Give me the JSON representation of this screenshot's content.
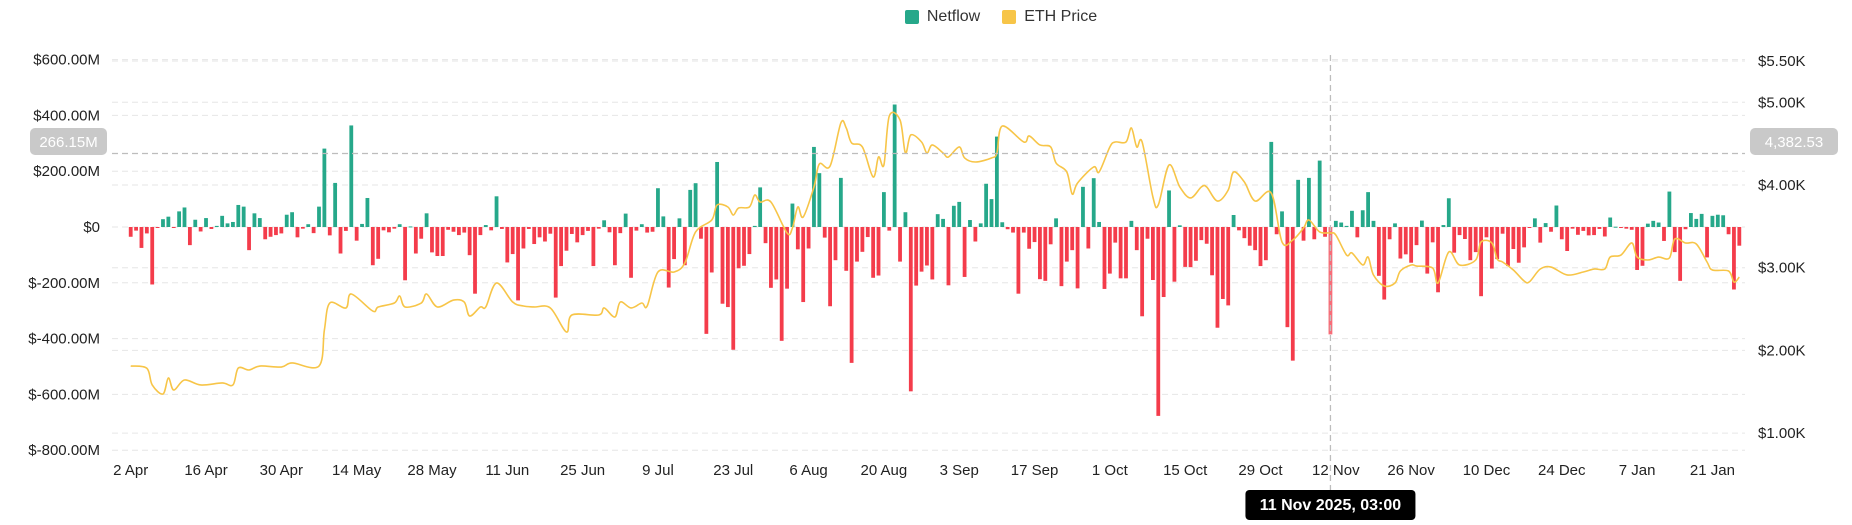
{
  "legend": {
    "netflow_label": "Netflow",
    "price_label": "ETH Price"
  },
  "colors": {
    "inflow": "#26a88a",
    "outflow": "#f43c4b",
    "price": "#f7c548",
    "grid": "#e6e6e6",
    "crosshair": "#bdbdbd",
    "crosshair_label_bg": "#c9c9c9",
    "tooltip_bg": "#000000"
  },
  "crosshair": {
    "left_value_label": "266.15M",
    "right_value_label": "4,382.53",
    "date_label": "11 Nov 2025, 03:00",
    "date_index": 223
  },
  "chart_data": {
    "type": "bar+line",
    "title": "",
    "x_start": "2025-04-02",
    "x_step_days": 1,
    "x_tick_labels": [
      "2 Apr",
      "16 Apr",
      "30 Apr",
      "14 May",
      "28 May",
      "11 Jun",
      "25 Jun",
      "9 Jul",
      "23 Jul",
      "6 Aug",
      "20 Aug",
      "3 Sep",
      "17 Sep",
      "1 Oct",
      "15 Oct",
      "29 Oct",
      "12 Nov",
      "26 Nov",
      "10 Dec",
      "24 Dec",
      "7 Jan",
      "21 Jan"
    ],
    "x_tick_every_days": 14,
    "left_axis": {
      "unit": "USD millions",
      "ylim": [
        -800,
        600
      ],
      "ticks": [
        600,
        400,
        200,
        0,
        -200,
        -400,
        -600,
        -800
      ],
      "tick_labels": [
        "$600.00M",
        "$400.00M",
        "$200.00M",
        "$0",
        "$-200.00M",
        "$-400.00M",
        "$-600.00M",
        "$-800.00M"
      ]
    },
    "right_axis": {
      "unit": "USD",
      "ticks": [
        5500,
        5000,
        4000,
        3000,
        2000,
        1000
      ],
      "tick_labels": [
        "$5.50K",
        "$5.00K",
        "$4.00K",
        "$3.00K",
        "$2.00K",
        "$1.00K"
      ]
    },
    "grid": true,
    "legend_position": "top-center",
    "series": [
      {
        "name": "Netflow",
        "type": "bar",
        "axis": "left",
        "values": [
          -35,
          -13,
          -75,
          -23,
          -206,
          -2,
          28,
          37,
          -1,
          56,
          70,
          -65,
          26,
          -16,
          32,
          -7,
          4,
          40,
          13,
          18,
          79,
          73,
          -83,
          49,
          32,
          -44,
          -35,
          -29,
          -23,
          44,
          53,
          -37,
          -6,
          10,
          -22,
          73,
          281,
          -30,
          158,
          -95,
          -14,
          364,
          -49,
          11,
          104,
          -137,
          -114,
          -12,
          -19,
          -6,
          10,
          -191,
          2,
          -95,
          -42,
          49,
          -91,
          -104,
          -104,
          -10,
          -17,
          -29,
          -20,
          -101,
          -239,
          -29,
          7,
          -12,
          110,
          -7,
          -127,
          -97,
          -263,
          -77,
          -7,
          -61,
          -37,
          -52,
          -24,
          -253,
          -140,
          -85,
          -25,
          -55,
          -29,
          -14,
          -140,
          -6,
          24,
          -19,
          -137,
          -22,
          48,
          -182,
          -13,
          10,
          -20,
          -17,
          139,
          38,
          -217,
          -115,
          31,
          -137,
          133,
          157,
          -42,
          -383,
          -163,
          233,
          -275,
          -287,
          -440,
          -148,
          -139,
          -97,
          4,
          142,
          -58,
          -218,
          -188,
          -408,
          -221,
          84,
          -80,
          -269,
          -77,
          287,
          193,
          -38,
          -284,
          -119,
          176,
          -157,
          -487,
          -124,
          -89,
          -36,
          -182,
          -174,
          125,
          -13,
          439,
          -124,
          53,
          -589,
          -210,
          -160,
          -138,
          -188,
          46,
          29,
          -209,
          76,
          90,
          -179,
          25,
          -52,
          13,
          155,
          100,
          324,
          17,
          -8,
          -20,
          -239,
          -20,
          -78,
          -54,
          -187,
          -193,
          -62,
          31,
          -212,
          -124,
          -83,
          -220,
          144,
          -77,
          175,
          18,
          -222,
          -167,
          -56,
          -184,
          -184,
          22,
          -83,
          -320,
          -42,
          -190,
          -677,
          -251,
          131,
          -196,
          6,
          -143,
          -144,
          -121,
          -47,
          -60,
          -173,
          -361,
          -258,
          -281,
          43,
          -12,
          -40,
          -67,
          -83,
          -140,
          -119,
          305,
          -26,
          56,
          -359,
          -479,
          169,
          -49,
          176,
          -44,
          238,
          -35,
          -385,
          22,
          16,
          4,
          58,
          -37,
          60,
          125,
          22,
          -175,
          -260,
          -44,
          13,
          -113,
          -98,
          -128,
          -65,
          23,
          -167,
          -55,
          -234,
          7,
          103,
          -92,
          -29,
          -43,
          -119,
          -90,
          -248,
          -37,
          -149,
          -115,
          -24,
          -140,
          -79,
          -128,
          -73,
          -1,
          31,
          -56,
          14,
          -17,
          77,
          -44,
          -86,
          -6,
          -28,
          -14,
          -30,
          -29,
          -7,
          -34,
          34,
          1,
          -2,
          -6,
          -10,
          -154,
          -139,
          12,
          22,
          16,
          -50,
          127,
          -90,
          -193,
          -8,
          50,
          29,
          47,
          -109,
          40,
          44,
          42,
          -26,
          -224,
          -67
        ]
      },
      {
        "name": "ETH Price",
        "type": "line",
        "axis": "right",
        "points": [
          [
            0,
            1811
          ],
          [
            3,
            1784
          ],
          [
            4,
            1582
          ],
          [
            6,
            1473
          ],
          [
            7,
            1666
          ],
          [
            8,
            1521
          ],
          [
            10,
            1642
          ],
          [
            13,
            1582
          ],
          [
            17,
            1606
          ],
          [
            19,
            1582
          ],
          [
            20,
            1787
          ],
          [
            22,
            1763
          ],
          [
            24,
            1811
          ],
          [
            28,
            1799
          ],
          [
            30,
            1848
          ],
          [
            35,
            1811
          ],
          [
            36,
            2247
          ],
          [
            37,
            2573
          ],
          [
            40,
            2513
          ],
          [
            41,
            2682
          ],
          [
            45,
            2476
          ],
          [
            46,
            2525
          ],
          [
            49,
            2573
          ],
          [
            50,
            2658
          ],
          [
            51,
            2525
          ],
          [
            54,
            2573
          ],
          [
            55,
            2682
          ],
          [
            57,
            2525
          ],
          [
            60,
            2609
          ],
          [
            62,
            2585
          ],
          [
            63,
            2416
          ],
          [
            65,
            2525
          ],
          [
            66,
            2525
          ],
          [
            68,
            2815
          ],
          [
            71,
            2585
          ],
          [
            73,
            2537
          ],
          [
            75,
            2525
          ],
          [
            78,
            2513
          ],
          [
            81,
            2222
          ],
          [
            82,
            2428
          ],
          [
            87,
            2428
          ],
          [
            88,
            2513
          ],
          [
            90,
            2404
          ],
          [
            91,
            2585
          ],
          [
            93,
            2513
          ],
          [
            95,
            2573
          ],
          [
            96,
            2537
          ],
          [
            98,
            2948
          ],
          [
            101,
            2948
          ],
          [
            103,
            3057
          ],
          [
            105,
            3432
          ],
          [
            108,
            3577
          ],
          [
            109,
            3758
          ],
          [
            111,
            3734
          ],
          [
            112,
            3637
          ],
          [
            113,
            3722
          ],
          [
            115,
            3734
          ],
          [
            116,
            3879
          ],
          [
            117,
            3794
          ],
          [
            119,
            3794
          ],
          [
            122,
            3420
          ],
          [
            123,
            3480
          ],
          [
            124,
            3734
          ],
          [
            125,
            3613
          ],
          [
            127,
            3976
          ],
          [
            128,
            4254
          ],
          [
            130,
            4230
          ],
          [
            132,
            4750
          ],
          [
            133,
            4689
          ],
          [
            134,
            4508
          ],
          [
            136,
            4460
          ],
          [
            138,
            4097
          ],
          [
            139,
            4339
          ],
          [
            140,
            4242
          ],
          [
            141,
            4834
          ],
          [
            143,
            4786
          ],
          [
            144,
            4387
          ],
          [
            145,
            4605
          ],
          [
            147,
            4520
          ],
          [
            148,
            4387
          ],
          [
            149,
            4484
          ],
          [
            151,
            4387
          ],
          [
            152,
            4339
          ],
          [
            154,
            4460
          ],
          [
            155,
            4327
          ],
          [
            157,
            4278
          ],
          [
            160,
            4327
          ],
          [
            161,
            4387
          ],
          [
            162,
            4713
          ],
          [
            166,
            4520
          ],
          [
            167,
            4593
          ],
          [
            169,
            4484
          ],
          [
            171,
            4460
          ],
          [
            172,
            4266
          ],
          [
            174,
            4157
          ],
          [
            175,
            3891
          ],
          [
            176,
            4024
          ],
          [
            179,
            4218
          ],
          [
            180,
            4157
          ],
          [
            182,
            4460
          ],
          [
            183,
            4520
          ],
          [
            185,
            4520
          ],
          [
            186,
            4689
          ],
          [
            187,
            4460
          ],
          [
            188,
            4520
          ],
          [
            190,
            3855
          ],
          [
            191,
            3758
          ],
          [
            193,
            4242
          ],
          [
            195,
            3976
          ],
          [
            197,
            3843
          ],
          [
            199,
            3976
          ],
          [
            200,
            3976
          ],
          [
            202,
            3806
          ],
          [
            204,
            3940
          ],
          [
            205,
            4157
          ],
          [
            207,
            4036
          ],
          [
            209,
            3806
          ],
          [
            212,
            3903
          ],
          [
            214,
            3311
          ],
          [
            216,
            3335
          ],
          [
            218,
            3480
          ],
          [
            219,
            3577
          ],
          [
            221,
            3432
          ],
          [
            223,
            3420
          ],
          [
            224,
            3395
          ],
          [
            226,
            3153
          ],
          [
            227,
            3178
          ],
          [
            229,
            3033
          ],
          [
            230,
            3129
          ],
          [
            231,
            2912
          ],
          [
            233,
            2779
          ],
          [
            235,
            2815
          ],
          [
            236,
            2960
          ],
          [
            238,
            3033
          ],
          [
            239,
            3020
          ],
          [
            242,
            2996
          ],
          [
            243,
            2815
          ],
          [
            245,
            3190
          ],
          [
            247,
            3033
          ],
          [
            250,
            3093
          ],
          [
            251,
            3311
          ],
          [
            253,
            3299
          ],
          [
            254,
            3105
          ],
          [
            255,
            3069
          ],
          [
            257,
            2972
          ],
          [
            259,
            2839
          ],
          [
            260,
            2830
          ],
          [
            262,
            2984
          ],
          [
            264,
            3008
          ],
          [
            267,
            2912
          ],
          [
            270,
            2948
          ],
          [
            272,
            2984
          ],
          [
            274,
            2984
          ],
          [
            275,
            3129
          ],
          [
            277,
            3153
          ],
          [
            279,
            3299
          ],
          [
            280,
            3129
          ],
          [
            282,
            3093
          ],
          [
            284,
            3129
          ],
          [
            286,
            3117
          ],
          [
            287,
            3347
          ],
          [
            289,
            3299
          ],
          [
            291,
            3287
          ],
          [
            293,
            3069
          ],
          [
            294,
            2972
          ],
          [
            297,
            2960
          ],
          [
            298,
            2827
          ],
          [
            299,
            2887
          ]
        ]
      }
    ]
  }
}
